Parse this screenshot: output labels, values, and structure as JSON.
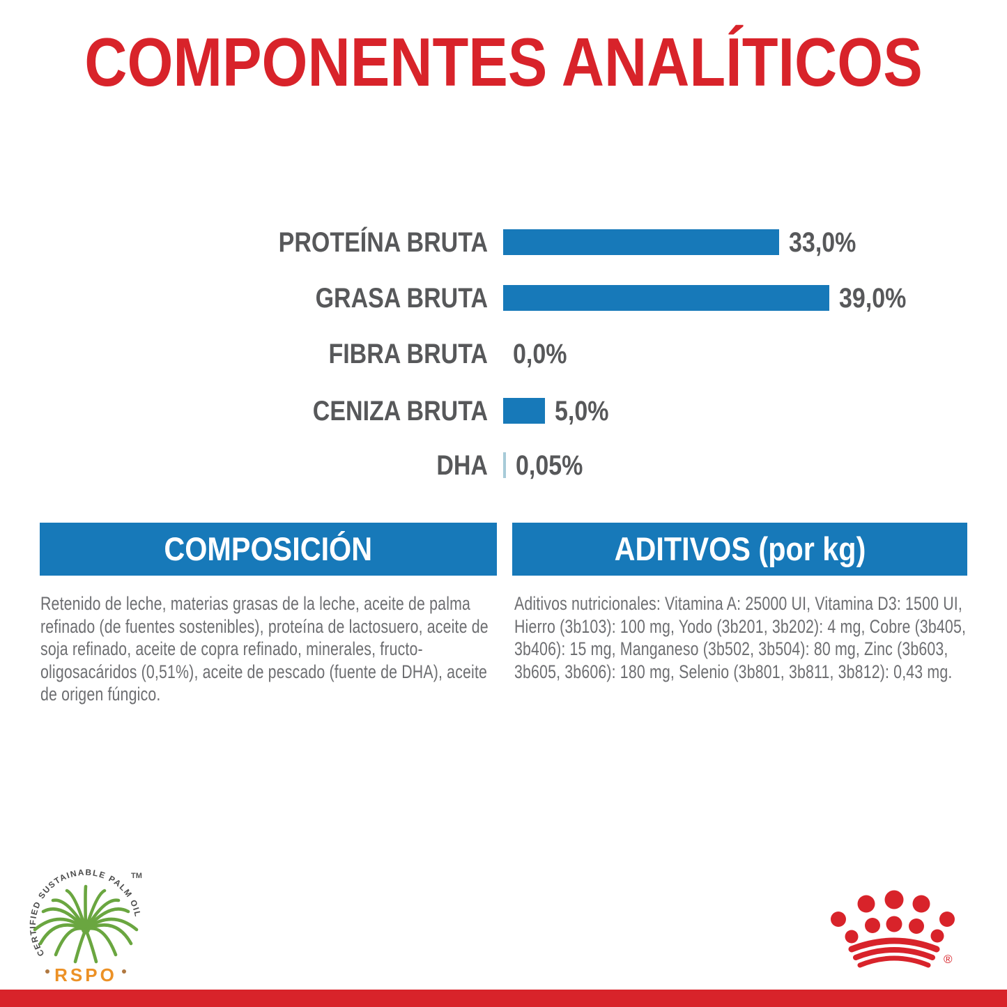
{
  "page": {
    "title": "COMPONENTES ANALÍTICOS"
  },
  "colors": {
    "accent_red": "#d8232a",
    "accent_blue": "#1779b9",
    "dha_light_blue": "#a7cbd8",
    "chart_text_gray": "#57585a",
    "body_text_gray": "#6d6e71",
    "rspo_green": "#6aa640",
    "rspo_orange": "#ec9126"
  },
  "chart_data": {
    "type": "bar",
    "orientation": "horizontal",
    "title": "COMPONENTES ANALÍTICOS",
    "categories": [
      "PROTEÍNA BRUTA",
      "GRASA BRUTA",
      "FIBRA BRUTA",
      "CENIZA BRUTA",
      "DHA"
    ],
    "values": [
      33.0,
      39.0,
      0.0,
      5.0,
      0.05
    ],
    "value_labels": [
      "33,0%",
      "39,0%",
      "0,0%",
      "5,0%",
      "0,05%"
    ],
    "unit": "%",
    "xlim": [
      0,
      40
    ],
    "grid": "off",
    "legend": "none",
    "bar_color": "#1779b9"
  },
  "sections": {
    "composicion": {
      "header": "COMPOSICIÓN",
      "body": "Retenido de leche, materias grasas de la leche, aceite de palma refinado (de fuentes sostenibles), proteína de lactosuero, aceite de soja refinado, aceite de copra refinado, minerales, fructo-oligosacáridos (0,51%), aceite de pescado (fuente de DHA), aceite de origen fúngico."
    },
    "aditivos": {
      "header": "ADITIVOS (por kg)",
      "body": "Aditivos nutricionales: Vitamina A: 25000 UI, Vitamina D3: 1500 UI, Hierro (3b103): 100 mg, Yodo (3b201, 3b202): 4 mg, Cobre (3b405, 3b406): 15 mg, Manganeso (3b502, 3b504): 80 mg, Zinc (3b603, 3b605, 3b606): 180 mg, Selenio (3b801, 3b811, 3b812): 0,43 mg."
    }
  },
  "footer": {
    "rspo": {
      "circle_text": "CERTIFIED SUSTAINABLE PALM OIL",
      "tm": "TM",
      "label": "RSPO"
    },
    "brand": {
      "registered": "®"
    }
  }
}
